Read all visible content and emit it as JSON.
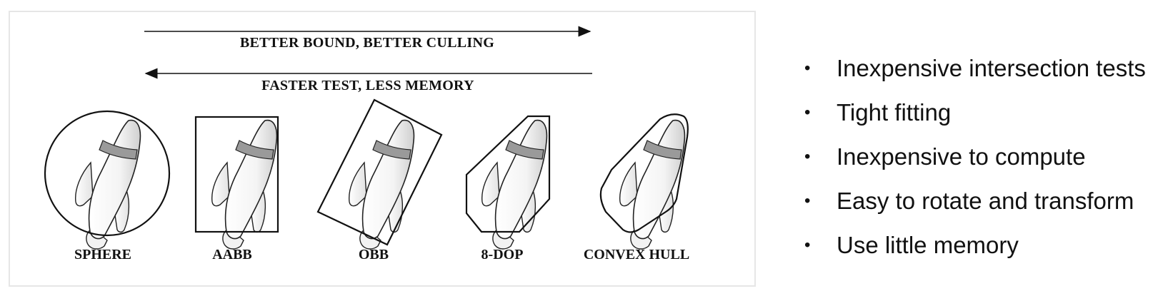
{
  "figure": {
    "arrow_top_label": "BETTER BOUND, BETTER CULLING",
    "arrow_bottom_label": "FASTER TEST, LESS MEMORY",
    "shapes": [
      "SPHERE",
      "AABB",
      "OBB",
      "8-DOP",
      "CONVEX HULL"
    ]
  },
  "bullets": [
    "Inexpensive intersection tests",
    "Tight fitting",
    "Inexpensive to compute",
    "Easy to rotate and transform",
    "Use little memory"
  ],
  "bullet_glyph": "•"
}
